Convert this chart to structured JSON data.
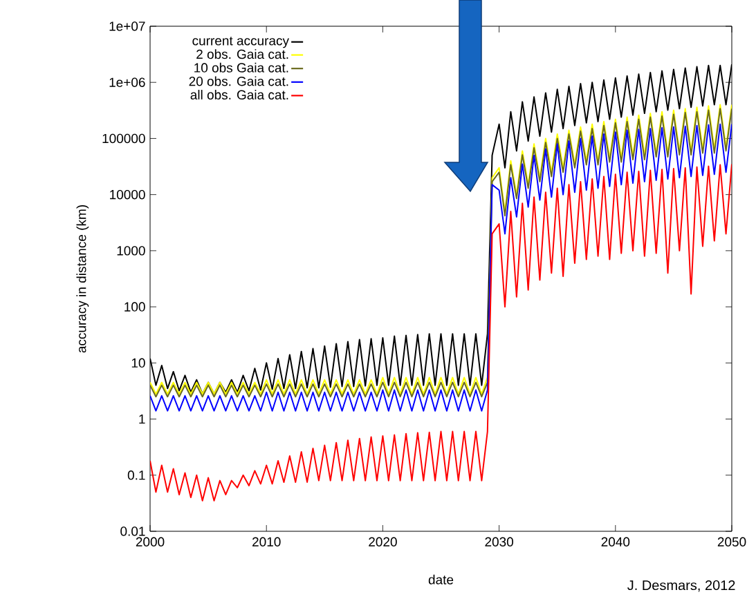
{
  "chart_data": {
    "type": "line",
    "xlabel": "date",
    "ylabel": "accuracy in distance (km)",
    "annotations": [
      "J. Desmars, 2012"
    ],
    "log": "y",
    "legend": "top left",
    "marker": "none",
    "line_style": "solid",
    "xlim": [
      2000,
      2050
    ],
    "xticks": [
      2000,
      2010,
      2020,
      2030,
      2040,
      2050
    ],
    "ylim": [
      0.01,
      10000000
    ],
    "yticks": [
      0.01,
      0.1,
      1,
      10,
      100,
      1000,
      10000,
      100000,
      {
        "value": 1000000,
        "label": "1e+06"
      },
      {
        "value": 10000000,
        "label": "1e+07"
      }
    ],
    "x": [
      2000,
      2000.5,
      2001,
      2001.5,
      2002,
      2002.5,
      2003,
      2003.5,
      2004,
      2004.5,
      2005,
      2005.5,
      2006,
      2006.5,
      2007,
      2007.5,
      2008,
      2008.5,
      2009,
      2009.5,
      2010,
      2010.5,
      2011,
      2011.5,
      2012,
      2012.5,
      2013,
      2013.5,
      2014,
      2014.5,
      2015,
      2015.5,
      2016,
      2016.5,
      2017,
      2017.5,
      2018,
      2018.5,
      2019,
      2019.5,
      2020,
      2020.5,
      2021,
      2021.5,
      2022,
      2022.5,
      2023,
      2023.5,
      2024,
      2024.5,
      2025,
      2025.5,
      2026,
      2026.5,
      2027,
      2027.5,
      2028,
      2028.5,
      2029,
      2029.4,
      2030,
      2030.5,
      2031,
      2031.5,
      2032,
      2032.5,
      2033,
      2033.5,
      2034,
      2034.5,
      2035,
      2035.5,
      2036,
      2036.5,
      2037,
      2037.5,
      2038,
      2038.5,
      2039,
      2039.5,
      2040,
      2040.5,
      2041,
      2041.5,
      2042,
      2042.5,
      2043,
      2043.5,
      2044,
      2044.5,
      2045,
      2045.5,
      2046,
      2046.5,
      2047,
      2047.5,
      2048,
      2048.5,
      2049,
      2049.5,
      2050
    ],
    "series": [
      {
        "name": "current accuracy",
        "color": "#000000",
        "values": [
          12,
          4,
          9,
          3.5,
          7,
          3.2,
          6,
          3,
          5,
          2.8,
          4.5,
          2.8,
          4.5,
          3,
          5,
          3,
          6,
          3.2,
          8,
          3.3,
          10,
          3.4,
          12,
          3.5,
          14,
          3.5,
          16,
          3.6,
          18,
          3.6,
          20,
          3.7,
          22,
          3.8,
          24,
          3.8,
          26,
          3.9,
          27,
          4,
          28,
          4,
          30,
          4,
          31,
          4,
          32,
          4,
          33,
          4,
          33,
          4,
          33,
          4,
          33,
          4,
          33,
          4,
          33,
          50000,
          180000,
          30000,
          300000,
          60000,
          450000,
          90000,
          550000,
          110000,
          650000,
          130000,
          750000,
          150000,
          850000,
          170000,
          950000,
          190000,
          1000000,
          200000,
          1100000,
          220000,
          1200000,
          240000,
          1300000,
          260000,
          1400000,
          280000,
          1500000,
          300000,
          1600000,
          320000,
          1700000,
          340000,
          1800000,
          360000,
          1900000,
          380000,
          2000000,
          400000,
          2000000,
          400000,
          2100000
        ]
      },
      {
        "name": "2 obs. Gaia cat.",
        "color": "#ffff00",
        "values": [
          4.5,
          2.8,
          4.5,
          2.8,
          4.5,
          2.8,
          4.5,
          2.8,
          4.5,
          2.8,
          4.5,
          2.8,
          4.5,
          2.8,
          4.5,
          2.8,
          4.5,
          2.8,
          4.5,
          2.8,
          5,
          2.8,
          5,
          2.8,
          5,
          2.8,
          5,
          2.8,
          5,
          2.8,
          5,
          2.8,
          5,
          2.8,
          5,
          2.8,
          5,
          2.8,
          5,
          2.8,
          5.5,
          2.8,
          5.5,
          2.8,
          5.5,
          2.8,
          5.5,
          2.8,
          5.5,
          2.8,
          5.5,
          2.8,
          5.5,
          2.8,
          5.5,
          2.8,
          5.5,
          2.8,
          5.5,
          20000,
          30000,
          5000,
          40000,
          10000,
          60000,
          15000,
          80000,
          20000,
          100000,
          25000,
          120000,
          30000,
          140000,
          35000,
          160000,
          40000,
          180000,
          40000,
          200000,
          45000,
          220000,
          45000,
          240000,
          50000,
          260000,
          50000,
          280000,
          55000,
          300000,
          55000,
          320000,
          60000,
          340000,
          60000,
          360000,
          65000,
          380000,
          65000,
          400000,
          70000,
          400000
        ]
      },
      {
        "name": "10 obs Gaia cat.",
        "color": "#6b6b1e",
        "values": [
          4,
          2.5,
          4,
          2.5,
          4,
          2.5,
          4,
          2.5,
          4,
          2.5,
          4,
          2.5,
          4,
          2.5,
          4,
          2.5,
          4,
          2.5,
          4,
          2.5,
          4.2,
          2.5,
          4.2,
          2.5,
          4.2,
          2.5,
          4.2,
          2.5,
          4.2,
          2.5,
          4.2,
          2.5,
          4.2,
          2.5,
          4.2,
          2.5,
          4.2,
          2.5,
          4.2,
          2.5,
          4.5,
          2.5,
          4.5,
          2.5,
          4.5,
          2.5,
          4.5,
          2.5,
          4.5,
          2.5,
          4.5,
          2.5,
          4.5,
          2.5,
          4.5,
          2.5,
          4.5,
          2.5,
          4.5,
          17000,
          25000,
          4200,
          34000,
          8500,
          51000,
          13000,
          68000,
          17000,
          85000,
          21000,
          100000,
          25000,
          120000,
          30000,
          135000,
          34000,
          150000,
          34000,
          170000,
          38000,
          190000,
          38000,
          200000,
          42000,
          220000,
          42000,
          240000,
          47000,
          250000,
          47000,
          270000,
          51000,
          290000,
          51000,
          300000,
          55000,
          320000,
          55000,
          340000,
          60000,
          340000
        ]
      },
      {
        "name": "20 obs. Gaia cat.",
        "color": "#0000ff",
        "values": [
          2.6,
          1.4,
          2.6,
          1.4,
          2.6,
          1.4,
          2.6,
          1.4,
          2.6,
          1.4,
          2.6,
          1.4,
          2.6,
          1.4,
          2.6,
          1.4,
          2.6,
          1.4,
          2.6,
          1.4,
          3,
          1.4,
          3,
          1.4,
          3,
          1.4,
          3,
          1.4,
          3,
          1.4,
          3,
          1.4,
          3,
          1.4,
          3,
          1.4,
          3,
          1.4,
          3,
          1.4,
          3.3,
          1.4,
          3.3,
          1.4,
          3.3,
          1.4,
          3.3,
          1.4,
          3.3,
          1.4,
          3.3,
          1.4,
          3.3,
          1.4,
          3.3,
          1.4,
          3.3,
          1.4,
          3.3,
          15000,
          12000,
          2000,
          20000,
          4000,
          35000,
          6000,
          50000,
          8000,
          65000,
          9000,
          80000,
          10000,
          90000,
          11000,
          100000,
          12000,
          110000,
          13000,
          120000,
          14000,
          130000,
          15000,
          140000,
          16000,
          145000,
          17000,
          150000,
          18000,
          155000,
          19000,
          160000,
          20000,
          165000,
          21000,
          170000,
          22000,
          175000,
          23000,
          180000,
          25000,
          180000
        ]
      },
      {
        "name": "all obs. Gaia cat.",
        "color": "#ff0000",
        "values": [
          0.18,
          0.05,
          0.15,
          0.05,
          0.13,
          0.045,
          0.11,
          0.04,
          0.1,
          0.035,
          0.09,
          0.035,
          0.08,
          0.045,
          0.08,
          0.06,
          0.1,
          0.065,
          0.12,
          0.07,
          0.15,
          0.07,
          0.18,
          0.075,
          0.22,
          0.075,
          0.26,
          0.075,
          0.3,
          0.08,
          0.34,
          0.08,
          0.38,
          0.08,
          0.42,
          0.08,
          0.45,
          0.08,
          0.48,
          0.08,
          0.5,
          0.08,
          0.52,
          0.08,
          0.55,
          0.08,
          0.57,
          0.08,
          0.58,
          0.08,
          0.6,
          0.08,
          0.6,
          0.08,
          0.6,
          0.08,
          0.6,
          0.08,
          0.6,
          2000,
          3000,
          100,
          5000,
          150,
          7000,
          200,
          9000,
          300,
          11000,
          400,
          13000,
          350,
          15000,
          600,
          17000,
          700,
          19000,
          800,
          21000,
          700,
          23000,
          900,
          25000,
          1000,
          26000,
          800,
          27000,
          900,
          28000,
          400,
          29000,
          1000,
          30000,
          170,
          31000,
          1200,
          32000,
          1500,
          34000,
          2000,
          35000
        ]
      }
    ]
  }
}
